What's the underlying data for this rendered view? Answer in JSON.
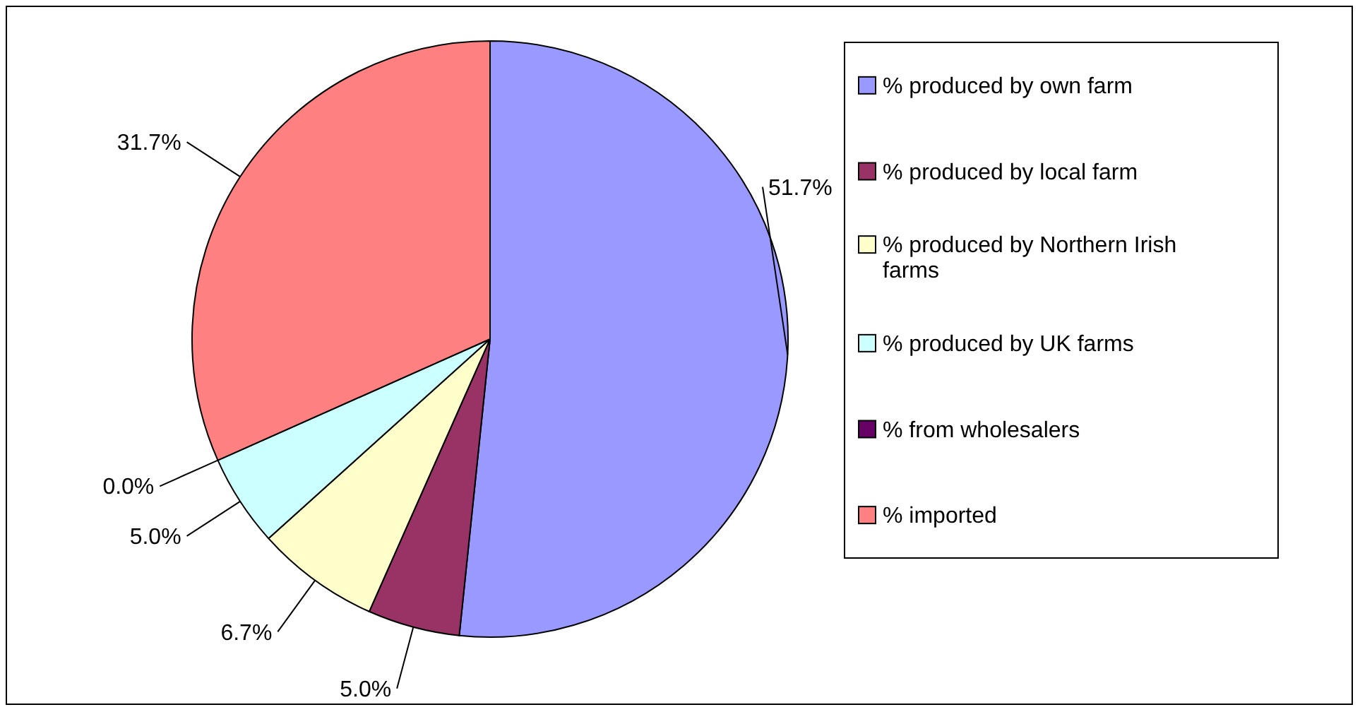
{
  "chart_data": {
    "type": "pie",
    "categories": [
      "% produced by own farm",
      "% produced by local farm",
      "% produced by Northern Irish farms",
      "% produced by UK farms",
      "% from wholesalers",
      "% imported"
    ],
    "values": [
      51.7,
      5.0,
      6.7,
      5.0,
      0.0,
      31.7
    ],
    "value_labels": [
      "51.7%",
      "5.0%",
      "6.7%",
      "5.0%",
      "0.0%",
      "31.7%"
    ],
    "colors": [
      "#9999ff",
      "#993366",
      "#ffffcc",
      "#ccffff",
      "#660066",
      "#ff8080"
    ],
    "legend": "right"
  }
}
